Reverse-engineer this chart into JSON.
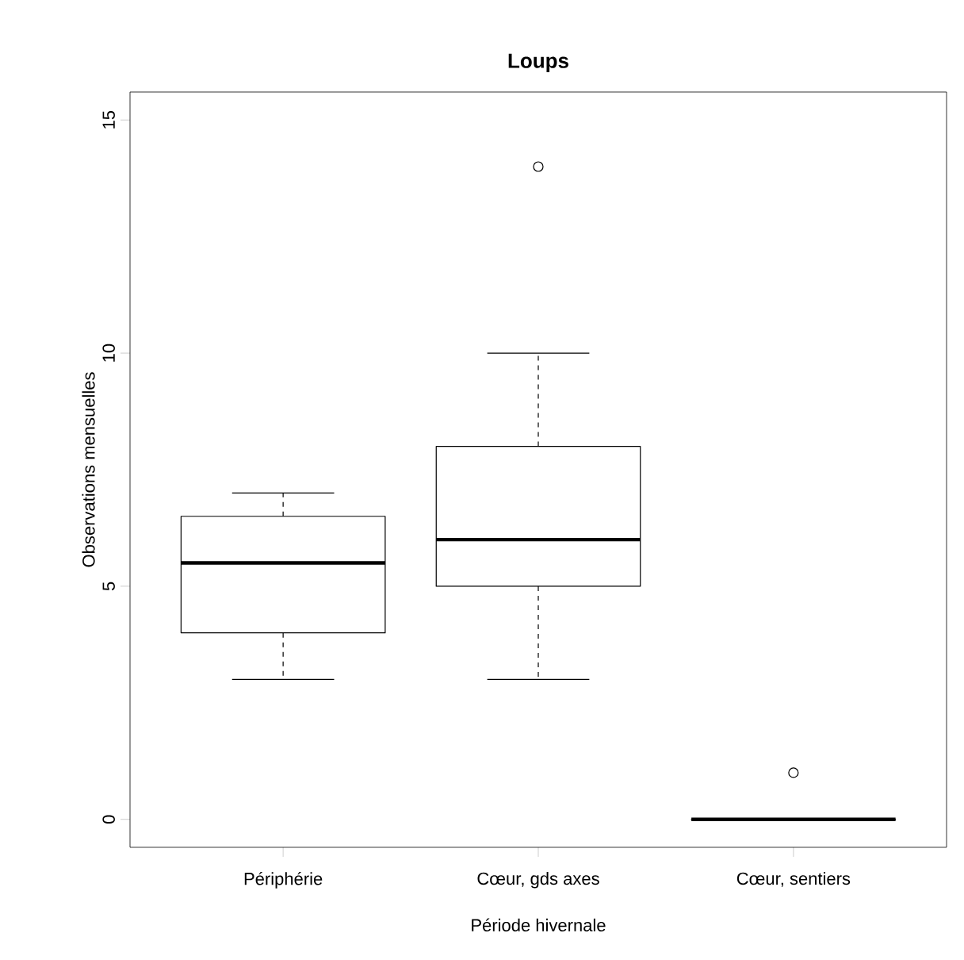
{
  "chart_data": {
    "type": "box",
    "title": "Loups",
    "xlabel": "Période hivernale",
    "ylabel": "Observations mensuelles",
    "categories": [
      "Périphérie",
      "Cœur, gds axes",
      "Cœur, sentiers"
    ],
    "boxes": [
      {
        "low": 3,
        "q1": 4,
        "median": 5.5,
        "q3": 6.5,
        "high": 7
      },
      {
        "low": 3,
        "q1": 5,
        "median": 6,
        "q3": 8,
        "high": 10,
        "outliers": [
          14
        ]
      },
      {
        "low": 0,
        "q1": 0,
        "median": 0,
        "q3": 0,
        "high": 0,
        "outliers": [
          1
        ]
      }
    ],
    "ylim": [
      -0.6,
      15.6
    ],
    "yticks": [
      0,
      5,
      10,
      15
    ]
  }
}
